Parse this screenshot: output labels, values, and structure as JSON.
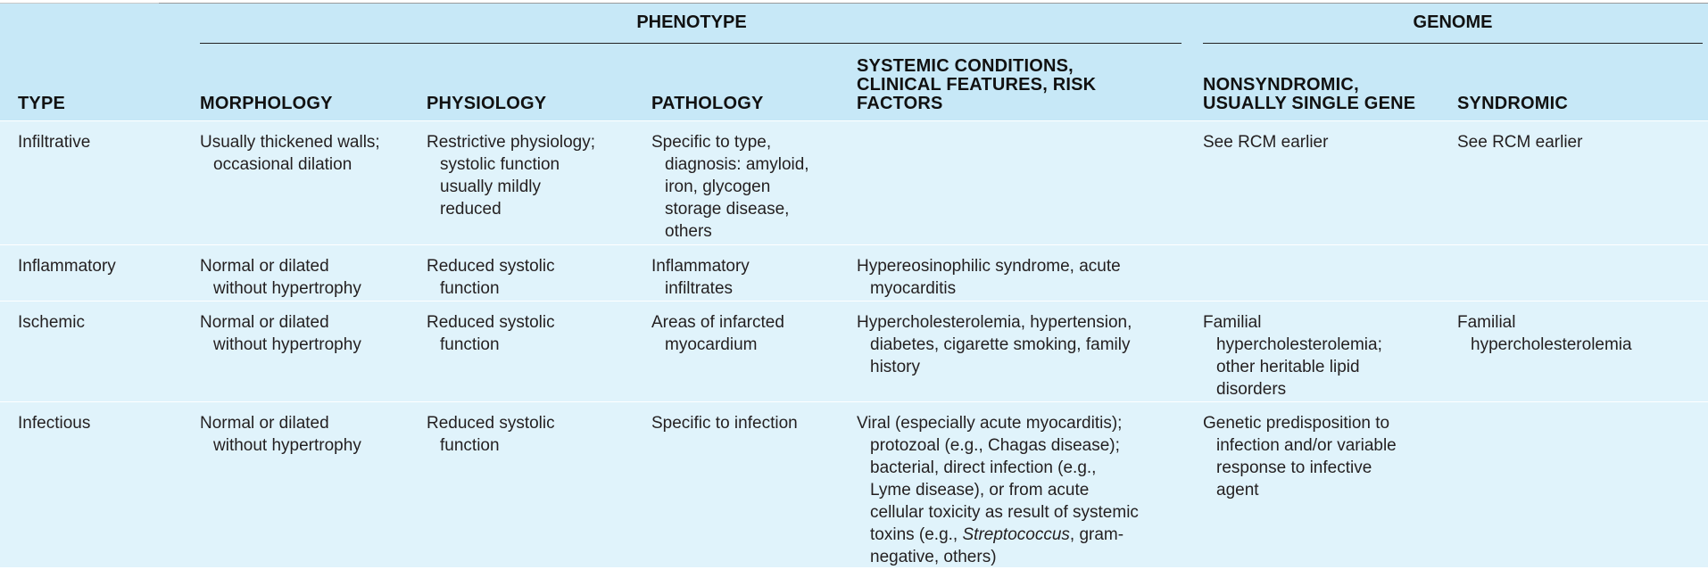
{
  "header": {
    "groups": {
      "phenotype": "PHENOTYPE",
      "genome": "GENOME"
    },
    "columns": {
      "type": "TYPE",
      "morphology": "MORPHOLOGY",
      "physiology": "PHYSIOLOGY",
      "pathology": "PATHOLOGY",
      "systemic": [
        "SYSTEMIC CONDITIONS,",
        "CLINICAL FEATURES, RISK",
        "FACTORS"
      ],
      "nonsyndromic": [
        "NONSYNDROMIC,",
        "USUALLY SINGLE GENE"
      ],
      "syndromic": "SYNDROMIC"
    }
  },
  "rows": [
    {
      "type": [
        "Infiltrative"
      ],
      "morphology": [
        "Usually thickened walls;",
        "occasional dilation"
      ],
      "physiology": [
        "Restrictive physiology;",
        "systolic function",
        "usually mildly",
        "reduced"
      ],
      "pathology": [
        "Specific to type,",
        "diagnosis: amyloid,",
        "iron, glycogen",
        "storage disease,",
        "others"
      ],
      "systemic": [],
      "nonsyndromic": [
        "See RCM earlier"
      ],
      "syndromic": [
        "See RCM earlier"
      ]
    },
    {
      "type": [
        "Inflammatory"
      ],
      "morphology": [
        "Normal or dilated",
        "without hypertrophy"
      ],
      "physiology": [
        "Reduced systolic",
        "function"
      ],
      "pathology": [
        "Inflammatory",
        "infiltrates"
      ],
      "systemic": [
        "Hypereosinophilic syndrome, acute",
        "myocarditis"
      ],
      "nonsyndromic": [],
      "syndromic": []
    },
    {
      "type": [
        "Ischemic"
      ],
      "morphology": [
        "Normal or dilated",
        "without hypertrophy"
      ],
      "physiology": [
        "Reduced systolic",
        "function"
      ],
      "pathology": [
        "Areas of infarcted",
        "myocardium"
      ],
      "systemic": [
        "Hypercholesterolemia, hypertension,",
        "diabetes, cigarette smoking, family",
        "history"
      ],
      "nonsyndromic": [
        "Familial",
        "hypercholesterolemia;",
        "other heritable lipid",
        "disorders"
      ],
      "syndromic": [
        "Familial",
        "hypercholesterolemia"
      ]
    },
    {
      "type": [
        "Infectious"
      ],
      "morphology": [
        "Normal or dilated",
        "without hypertrophy"
      ],
      "physiology": [
        "Reduced systolic",
        "function"
      ],
      "pathology": [
        "Specific to infection"
      ],
      "systemic": [
        "Viral (especially acute myocarditis);",
        "protozoal (e.g., Chagas disease);",
        "bacterial, direct infection (e.g.,",
        "Lyme disease), or from acute",
        "cellular toxicity as result of systemic",
        "toxins (e.g., ",
        "Streptococcus",
        ", gram-",
        "negative, others)"
      ],
      "nonsyndromic": [
        "Genetic predisposition to",
        "infection and/or variable",
        "response to infective",
        "agent"
      ],
      "syndromic": []
    }
  ]
}
